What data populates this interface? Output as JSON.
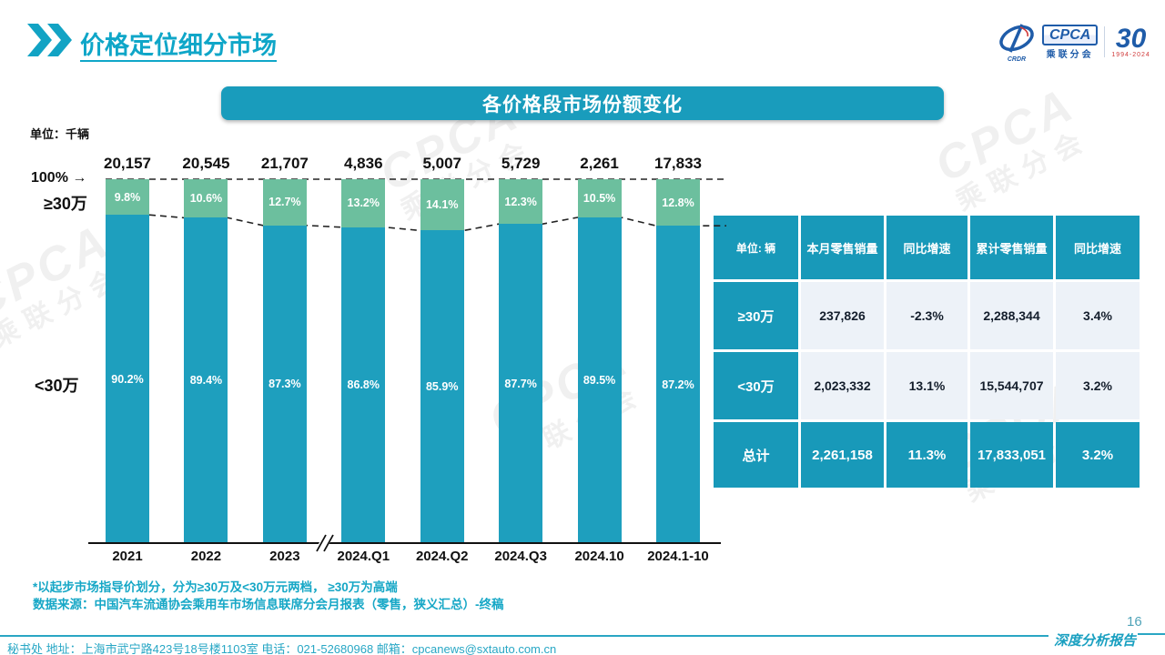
{
  "page": {
    "title": "价格定位细分市场",
    "page_number": "16",
    "report_label": "深度分析报告",
    "footer_contact": "秘书处  地址：上海市武宁路423号18号楼1103室  电话：021-52680968   邮箱：cpcanews@sxtauto.com.cn",
    "note_line1": "*以起步市场指导价划分，分为≥30万及<30万元两档， ≥30万为高端",
    "note_line2": "数据来源：中国汽车流通协会乘用车市场信息联席分会月报表（零售，狭义汇总）-终稿"
  },
  "logo": {
    "cpca": "CPCA",
    "sub": "乘联分会",
    "crdr": "CRDR",
    "anniversary": "30",
    "years": "1994-2024",
    "watermark_line1": "CPCA",
    "watermark_line2": "乘联分会"
  },
  "banner": {
    "title": "各价格段市场份额变化"
  },
  "chart_data": {
    "type": "bar",
    "stacked": true,
    "unit_label": "单位：千辆",
    "axis_top_label": "100%",
    "axis_top_arrow": "→",
    "left_label_top": "≥30万",
    "left_label_bottom": "<30万",
    "categories": [
      "2021",
      "2022",
      "2023",
      "2024.Q1",
      "2024.Q2",
      "2024.Q3",
      "2024.10",
      "2024.1-10"
    ],
    "totals": [
      "20,157",
      "20,545",
      "21,707",
      "4,836",
      "5,007",
      "5,729",
      "2,261",
      "17,833"
    ],
    "series": [
      {
        "name": "≥30万",
        "color": "#6CBF9E",
        "values": [
          9.8,
          10.6,
          12.7,
          13.2,
          14.1,
          12.3,
          10.5,
          12.8
        ]
      },
      {
        "name": "<30万",
        "color": "#1E9FBE",
        "values": [
          90.2,
          89.4,
          87.3,
          86.8,
          85.9,
          87.7,
          89.5,
          87.2
        ]
      }
    ],
    "ylim": [
      0,
      100
    ],
    "grid": false,
    "axis_break_between": [
      "2023",
      "2024.Q1"
    ],
    "dashed_guides": "tops at 100% and ≥30万 segment boundary"
  },
  "table": {
    "header": [
      "单位: 辆",
      "本月零售销量",
      "同比增速",
      "累计零售销量",
      "同比增速"
    ],
    "rows": [
      {
        "label": "≥30万",
        "cells": [
          "237,826",
          "-2.3%",
          "2,288,344",
          "3.4%"
        ]
      },
      {
        "label": "<30万",
        "cells": [
          "2,023,332",
          "13.1%",
          "15,544,707",
          "3.2%"
        ]
      },
      {
        "label": "总计",
        "cells": [
          "2,261,158",
          "11.3%",
          "17,833,051",
          "3.2%"
        ]
      }
    ]
  },
  "colors": {
    "teal": "#1E9FBE",
    "green": "#6CBF9E",
    "banner": "#199CBC",
    "table_header": "#1899B9",
    "table_cell": "#EDF2F8",
    "accent_text": "#0FA6C8"
  }
}
